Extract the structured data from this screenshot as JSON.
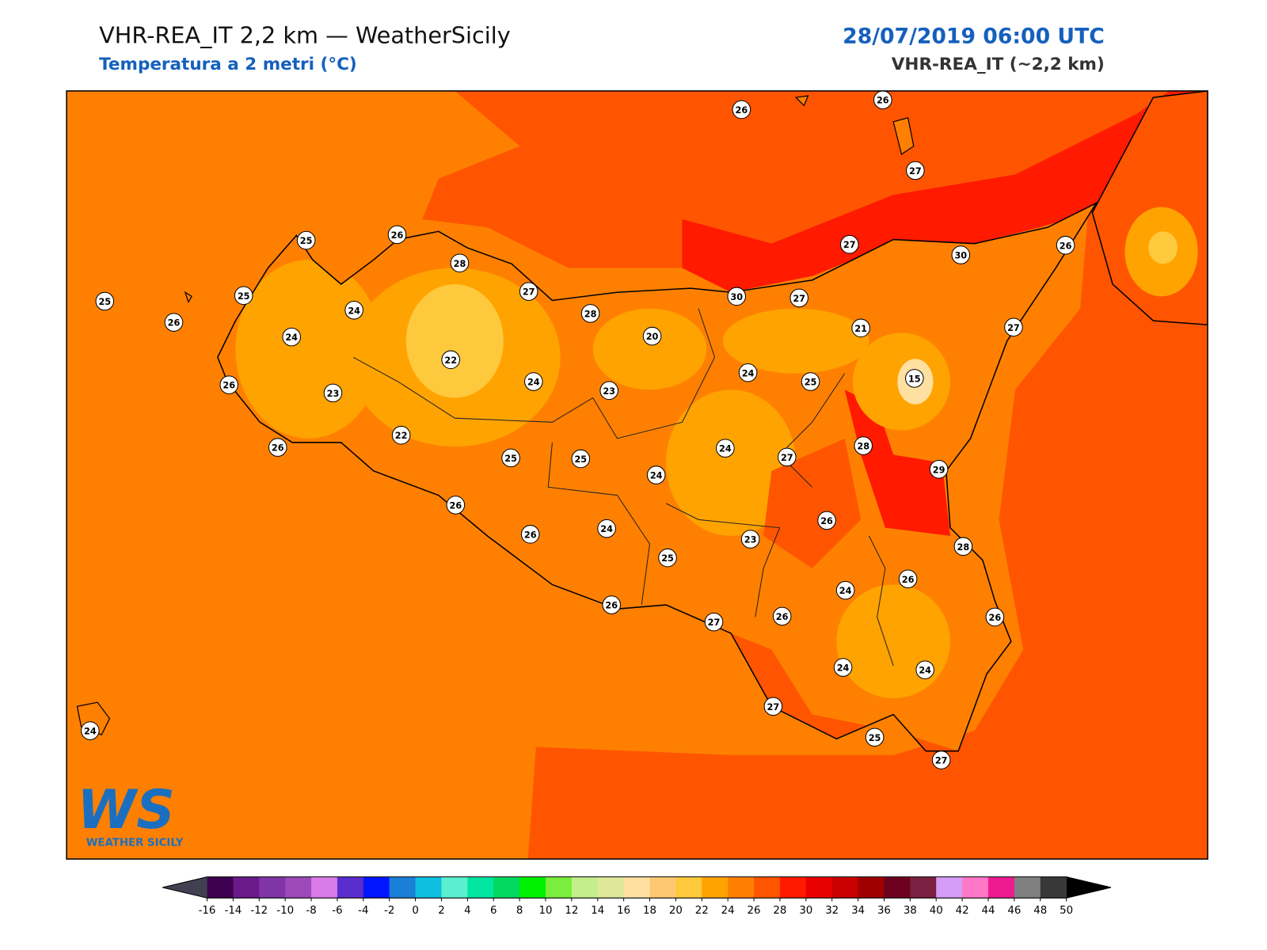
{
  "header": {
    "title": "VHR-REA_IT 2,2 km — WeatherSicily",
    "subtitle": "Temperatura a 2 metri (°C)",
    "datetime": "28/07/2019 06:00 UTC",
    "model": "VHR-REA_IT (~2,2 km)"
  },
  "logo": {
    "mark": "WS",
    "name": "WEATHER SICILY"
  },
  "stations": [
    26,
    26,
    27,
    25,
    26,
    28,
    25,
    25,
    26,
    24,
    27,
    28,
    30,
    27,
    27,
    30,
    26,
    27,
    21,
    20,
    24,
    22,
    26,
    23,
    24,
    23,
    24,
    25,
    15,
    26,
    22,
    25,
    25,
    24,
    24,
    27,
    28,
    29,
    26,
    26,
    26,
    24,
    23,
    25,
    28,
    24,
    26,
    26,
    27,
    26,
    26,
    24,
    24,
    27,
    25,
    27,
    24
  ],
  "colorbar": {
    "ticks": [
      -16,
      -14,
      -12,
      -10,
      -8,
      -6,
      -4,
      -2,
      0,
      2,
      4,
      6,
      8,
      10,
      12,
      14,
      16,
      18,
      20,
      22,
      24,
      26,
      28,
      30,
      32,
      34,
      36,
      38,
      40,
      42,
      44,
      46,
      48,
      50
    ],
    "colors": [
      "#3d0050",
      "#6a1a8a",
      "#7f35a5",
      "#9b4ab8",
      "#d97be8",
      "#5a2ecc",
      "#0016ff",
      "#1a7fd6",
      "#0fbfe0",
      "#5aefcf",
      "#00e6a0",
      "#00d860",
      "#00f000",
      "#7aee3c",
      "#c3ee8a",
      "#dfe89a",
      "#ffe0a0",
      "#fec873",
      "#fec93d",
      "#ffa300",
      "#ff8000",
      "#ff5500",
      "#ff1a00",
      "#e80000",
      "#c80000",
      "#9e0000",
      "#6e0020",
      "#7a2040",
      "#d59cf7",
      "#ff78c8",
      "#ee1a90",
      "#808080",
      "#383838"
    ],
    "under_color": "#404050",
    "over_color": "#000000"
  }
}
